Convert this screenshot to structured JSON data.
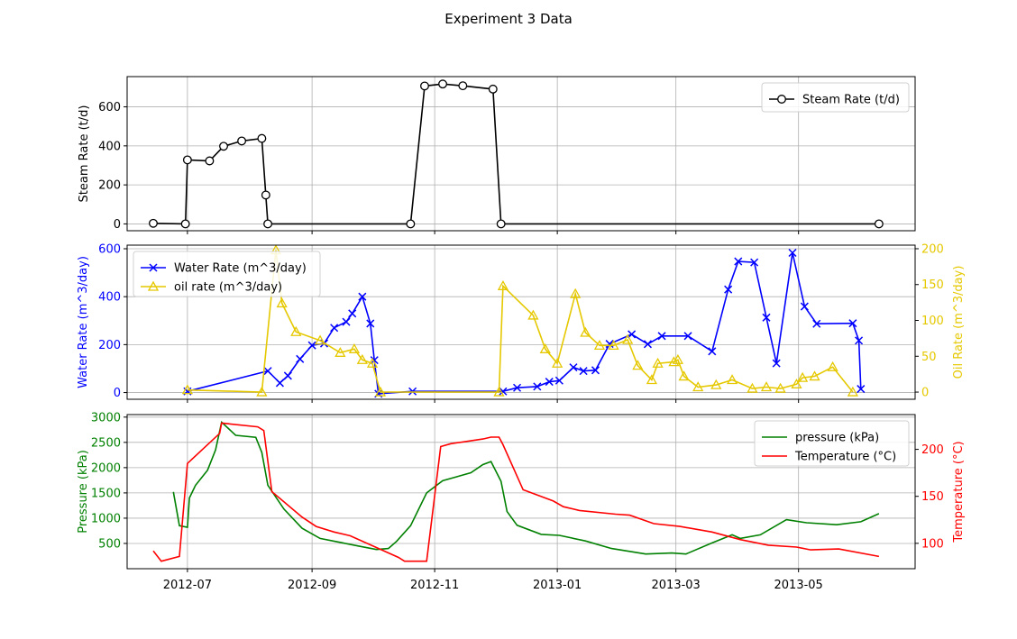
{
  "title": "Experiment 3 Data",
  "colors": {
    "steam": "#000000",
    "water": "#0000ff",
    "oil": "#e5c800",
    "pressure": "#008000",
    "temperature": "#ff0000",
    "grid": "#b0b0b0"
  },
  "x_ticks": [
    "2012-07",
    "2012-09",
    "2012-11",
    "2013-01",
    "2013-03",
    "2013-05"
  ],
  "chart_data": [
    {
      "type": "line",
      "x_axis": "date",
      "xlim": [
        "2012-06-01",
        "2013-06-28"
      ],
      "ylabel": "Steam Rate (t/d)",
      "ylim": [
        -35,
        755
      ],
      "yticks": [
        0,
        200,
        400,
        600
      ],
      "grid": true,
      "legend": "top-right",
      "series": [
        {
          "name": "Steam Rate (t/d)",
          "marker": "open-circle",
          "color": "#000000",
          "x": [
            "2012-06-14",
            "2012-06-30",
            "2012-07-01",
            "2012-07-12",
            "2012-07-19",
            "2012-07-28",
            "2012-08-07",
            "2012-08-09",
            "2012-08-10",
            "2012-10-20",
            "2012-10-27",
            "2012-11-05",
            "2012-11-15",
            "2012-11-30",
            "2012-12-04",
            "2013-06-10"
          ],
          "y": [
            3,
            0,
            328,
            323,
            398,
            425,
            438,
            148,
            0,
            0,
            707,
            717,
            708,
            691,
            0,
            0
          ]
        }
      ]
    },
    {
      "type": "line",
      "x_axis": "date",
      "xlim": [
        "2012-06-01",
        "2013-06-28"
      ],
      "ylabel": "Water Rate (m^3/day)",
      "ylim": [
        -28,
        615
      ],
      "yticks": [
        0,
        200,
        400,
        600
      ],
      "y2label": "Oil Rate (m^3/day)",
      "y2lim": [
        -10,
        205
      ],
      "y2ticks": [
        0,
        50,
        100,
        150,
        200
      ],
      "grid": true,
      "legend": "top-left",
      "series": [
        {
          "name": "Water Rate (m^3/day)",
          "axis": "left",
          "marker": "x",
          "color": "#0000ff",
          "x": [
            "2012-07-01",
            "2012-08-10",
            "2012-08-16",
            "2012-08-20",
            "2012-08-26",
            "2012-09-01",
            "2012-09-07",
            "2012-09-12",
            "2012-09-18",
            "2012-09-21",
            "2012-09-26",
            "2012-09-30",
            "2012-10-02",
            "2012-10-04",
            "2012-10-21",
            "2012-12-05",
            "2012-12-12",
            "2012-12-22",
            "2012-12-28",
            "2013-01-02",
            "2013-01-09",
            "2013-01-14",
            "2013-01-20",
            "2013-01-27",
            "2013-02-07",
            "2013-02-15",
            "2013-02-22",
            "2013-03-07",
            "2013-03-19",
            "2013-03-27",
            "2013-04-01",
            "2013-04-09",
            "2013-04-15",
            "2013-04-20",
            "2013-04-28",
            "2013-05-04",
            "2013-05-10",
            "2013-05-28",
            "2013-05-31",
            "2013-06-01"
          ],
          "y": [
            5,
            90,
            40,
            70,
            140,
            197,
            205,
            270,
            295,
            330,
            400,
            288,
            135,
            -5,
            5,
            5,
            20,
            25,
            45,
            50,
            105,
            90,
            93,
            203,
            243,
            202,
            236,
            236,
            172,
            430,
            547,
            543,
            313,
            122,
            583,
            359,
            287,
            289,
            217,
            15
          ]
        },
        {
          "name": "oil rate (m^3/day)",
          "axis": "right",
          "marker": "open-triangle",
          "color": "#e5c800",
          "x": [
            "2012-07-01",
            "2012-08-07",
            "2012-08-14",
            "2012-08-17",
            "2012-08-24",
            "2012-09-05",
            "2012-09-15",
            "2012-09-22",
            "2012-09-26",
            "2012-10-01",
            "2012-10-05",
            "2012-12-03",
            "2012-12-05",
            "2012-12-20",
            "2012-12-26",
            "2013-01-01",
            "2013-01-10",
            "2013-01-15",
            "2013-01-22",
            "2013-01-29",
            "2013-02-05",
            "2013-02-10",
            "2013-02-17",
            "2013-02-20",
            "2013-02-28",
            "2013-03-02",
            "2013-03-05",
            "2013-03-12",
            "2013-03-21",
            "2013-03-29",
            "2013-04-08",
            "2013-04-15",
            "2013-04-22",
            "2013-04-30",
            "2013-05-03",
            "2013-05-09",
            "2013-05-18",
            "2013-05-28"
          ],
          "y": [
            3,
            0,
            198,
            124,
            84,
            72,
            55,
            60,
            45,
            40,
            0,
            0,
            148,
            107,
            60,
            40,
            137,
            83,
            65,
            65,
            73,
            37,
            17,
            40,
            42,
            45,
            22,
            7,
            10,
            17,
            5,
            7,
            5,
            11,
            20,
            22,
            35,
            0
          ]
        }
      ]
    },
    {
      "type": "line",
      "x_axis": "date",
      "xlim": [
        "2012-06-01",
        "2013-06-28"
      ],
      "xlabel": "",
      "ylabel": "Pressure (kPa)",
      "ylim": [
        0,
        3050
      ],
      "yticks": [
        500,
        1000,
        1500,
        2000,
        2500,
        3000
      ],
      "y2label": "Temperature (°C)",
      "y2lim": [
        73,
        237
      ],
      "y2ticks": [
        100,
        150,
        200
      ],
      "grid": true,
      "legend": "top-right",
      "series": [
        {
          "name": "pressure (kPa)",
          "axis": "left",
          "color": "#008000",
          "x": [
            "2012-06-24",
            "2012-06-27",
            "2012-07-01",
            "2012-07-02",
            "2012-07-05",
            "2012-07-11",
            "2012-07-15",
            "2012-07-18",
            "2012-07-25",
            "2012-08-04",
            "2012-08-07",
            "2012-08-10",
            "2012-08-18",
            "2012-08-27",
            "2012-09-05",
            "2012-09-24",
            "2012-10-03",
            "2012-10-09",
            "2012-10-13",
            "2012-10-20",
            "2012-10-28",
            "2012-11-05",
            "2012-11-19",
            "2012-11-25",
            "2012-11-29",
            "2012-12-04",
            "2012-12-07",
            "2012-12-12",
            "2012-12-24",
            "2013-01-02",
            "2013-01-15",
            "2013-01-28",
            "2013-02-14",
            "2013-02-27",
            "2013-03-06",
            "2013-03-19",
            "2013-03-29",
            "2013-04-02",
            "2013-04-12",
            "2013-04-25",
            "2013-05-05",
            "2013-05-20",
            "2013-06-01",
            "2013-06-10"
          ],
          "y": [
            1520,
            850,
            820,
            1400,
            1650,
            1950,
            2350,
            2900,
            2640,
            2600,
            2300,
            1650,
            1180,
            800,
            600,
            450,
            380,
            400,
            540,
            850,
            1500,
            1740,
            1900,
            2060,
            2120,
            1730,
            1130,
            860,
            680,
            660,
            550,
            400,
            290,
            310,
            290,
            510,
            670,
            600,
            670,
            970,
            910,
            870,
            930,
            1090
          ]
        },
        {
          "name": "Temperature (°C)",
          "axis": "right",
          "color": "#ff0000",
          "x": [
            "2012-06-14",
            "2012-06-18",
            "2012-06-27",
            "2012-07-01",
            "2012-07-17",
            "2012-07-18",
            "2012-08-05",
            "2012-08-08",
            "2012-08-12",
            "2012-08-27",
            "2012-09-03",
            "2012-09-12",
            "2012-09-20",
            "2012-10-14",
            "2012-10-17",
            "2012-10-28",
            "2012-11-04",
            "2012-11-09",
            "2012-11-25",
            "2012-11-29",
            "2012-12-03",
            "2012-12-05",
            "2012-12-15",
            "2012-12-30",
            "2013-01-04",
            "2013-01-12",
            "2013-01-30",
            "2013-02-06",
            "2013-02-18",
            "2013-03-03",
            "2013-03-19",
            "2013-04-02",
            "2013-04-16",
            "2013-04-30",
            "2013-05-07",
            "2013-05-21",
            "2013-06-10"
          ],
          "y": [
            92,
            81,
            86,
            185,
            217,
            228,
            224,
            220,
            155,
            128,
            118,
            112,
            108,
            85,
            81,
            81,
            203,
            206,
            211,
            213,
            213,
            205,
            157,
            145,
            139,
            135,
            131,
            130,
            121,
            118,
            112,
            104,
            98,
            96,
            93,
            94,
            86
          ]
        }
      ]
    }
  ]
}
